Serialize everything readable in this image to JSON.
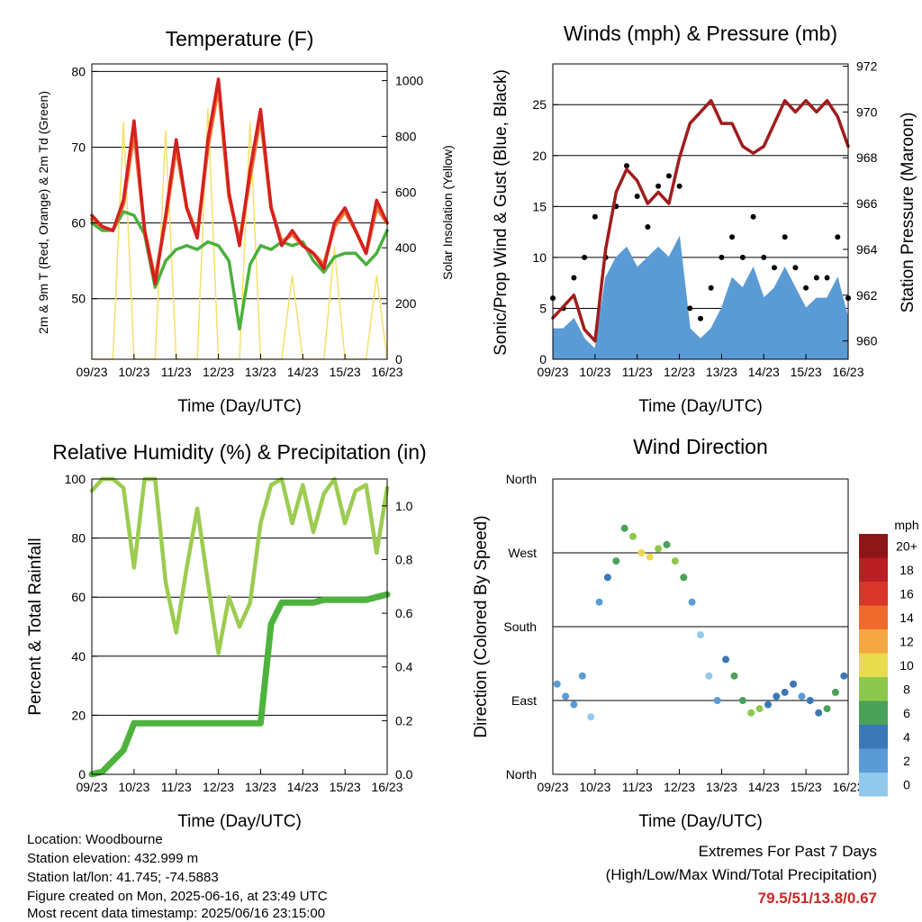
{
  "x_ticks": [
    "09/23",
    "10/23",
    "11/23",
    "12/23",
    "13/23",
    "14/23",
    "15/23",
    "16/23"
  ],
  "panels": {
    "temperature": {
      "title": "Temperature (F)",
      "xlabel": "Time (Day/UTC)",
      "ylabel_left": "2m & 9m T (Red, Orange) & 2m Td (Green)",
      "ylabel_right": "Solar Insolation (Yellow)",
      "yticks_left": [
        "50",
        "60",
        "70",
        "80"
      ],
      "yticks_right": [
        "0",
        "200",
        "400",
        "600",
        "800",
        "1000"
      ]
    },
    "winds": {
      "title": "Winds (mph) & Pressure (mb)",
      "xlabel": "Time (Day/UTC)",
      "ylabel_left": "Sonic/Prop Wind & Gust (Blue, Black)",
      "ylabel_right": "Station Pressure (Maroon)",
      "yticks_left": [
        "0",
        "5",
        "10",
        "15",
        "20",
        "25"
      ],
      "yticks_right": [
        "960",
        "962",
        "964",
        "966",
        "968",
        "970",
        "972"
      ]
    },
    "humidity": {
      "title": "Relative Humidity (%) & Precipitation (in)",
      "xlabel": "Time (Day/UTC)",
      "ylabel_left": "Percent & Total Rainfall",
      "yticks_left": [
        "0",
        "20",
        "40",
        "60",
        "80",
        "100"
      ],
      "yticks_right": [
        "0.0",
        "0.2",
        "0.4",
        "0.6",
        "0.8",
        "1.0"
      ]
    },
    "direction": {
      "title": "Wind Direction",
      "xlabel": "Time (Day/UTC)",
      "ylabel_left": "Direction (Colored By Speed)",
      "yticks_left": [
        "North",
        "East",
        "South",
        "West",
        "North"
      ],
      "legend_title": "mph",
      "legend_labels": [
        "0",
        "2",
        "4",
        "6",
        "8",
        "10",
        "12",
        "14",
        "16",
        "18",
        "20+"
      ]
    }
  },
  "colors": {
    "temp_2m": "#d42020",
    "temp_9m": "#f07830",
    "dewpoint": "#4caf3e",
    "insolation": "#f5e06a",
    "wind": "#5a9bd5",
    "gust": "#000000",
    "pressure": "#a01c1c",
    "rh": "#9ccc50",
    "precip": "#4db33d",
    "speed_scale": [
      "#cde9f7",
      "#91c9ec",
      "#5a9bd5",
      "#3a78b8",
      "#4aa15a",
      "#8cc84b",
      "#e8dc4c",
      "#f5a742",
      "#ef6a2c",
      "#d9352a",
      "#b81e22",
      "#8e1518"
    ]
  },
  "chart_data": [
    {
      "type": "line",
      "title": "Temperature (F)",
      "xlabel": "Time (Day/UTC)",
      "ylabel": "2m & 9m T (Red, Orange) & 2m Td (Green)",
      "ylabel_right": "Solar Insolation (Yellow)",
      "x": [
        9.0,
        9.25,
        9.5,
        9.75,
        10.0,
        10.25,
        10.5,
        10.75,
        11.0,
        11.25,
        11.5,
        11.75,
        12.0,
        12.25,
        12.5,
        12.75,
        13.0,
        13.25,
        13.5,
        13.75,
        14.0,
        14.25,
        14.5,
        14.75,
        15.0,
        15.25,
        15.5,
        15.75,
        16.0
      ],
      "ylim": [
        42,
        81
      ],
      "ylim_right": [
        0,
        1060
      ],
      "series": [
        {
          "name": "2m T",
          "values": [
            61,
            59.5,
            59,
            63,
            73.5,
            59,
            52,
            61,
            71,
            62,
            58,
            71,
            79,
            64,
            57,
            67,
            75,
            62,
            57,
            59,
            57,
            56,
            54,
            60,
            62,
            59,
            56,
            63,
            60
          ]
        },
        {
          "name": "9m T",
          "values": [
            60.5,
            59.5,
            59,
            62.5,
            72,
            59,
            52.5,
            60.5,
            70,
            62,
            58.5,
            70,
            78,
            63.5,
            57.5,
            66,
            74,
            62,
            57.5,
            58.5,
            57,
            56,
            54.5,
            59.5,
            61.5,
            59,
            56,
            62,
            60
          ]
        },
        {
          "name": "2m Td",
          "values": [
            60,
            59,
            59,
            61.5,
            61,
            58.5,
            51.5,
            55,
            56.5,
            57,
            56.5,
            57.5,
            57,
            55,
            46,
            54.5,
            57,
            56.5,
            57.5,
            57,
            57.5,
            55,
            53.5,
            55.5,
            56,
            56,
            54.5,
            56,
            59
          ]
        },
        {
          "name": "Solar Insolation",
          "axis": "right",
          "values": [
            0,
            0,
            0,
            850,
            0,
            0,
            0,
            820,
            0,
            0,
            0,
            900,
            0,
            0,
            0,
            850,
            0,
            0,
            0,
            300,
            0,
            0,
            0,
            400,
            0,
            0,
            0,
            300,
            0
          ]
        }
      ]
    },
    {
      "type": "line",
      "title": "Winds (mph) & Pressure (mb)",
      "xlabel": "Time (Day/UTC)",
      "ylabel": "Sonic/Prop Wind & Gust (Blue, Black)",
      "ylabel_right": "Station Pressure (Maroon)",
      "x": [
        9.0,
        9.25,
        9.5,
        9.75,
        10.0,
        10.25,
        10.5,
        10.75,
        11.0,
        11.25,
        11.5,
        11.75,
        12.0,
        12.25,
        12.5,
        12.75,
        13.0,
        13.25,
        13.5,
        13.75,
        14.0,
        14.25,
        14.5,
        14.75,
        15.0,
        15.25,
        15.5,
        15.75,
        16.0
      ],
      "ylim": [
        0,
        29
      ],
      "ylim_right": [
        959.2,
        972.1
      ],
      "series": [
        {
          "name": "Wind",
          "values": [
            3,
            3,
            4,
            2,
            1,
            8,
            10,
            11,
            9,
            10,
            11,
            10,
            12,
            3,
            2,
            3,
            5,
            8,
            7,
            9,
            6,
            7,
            9,
            7,
            5,
            6,
            6,
            8,
            4
          ]
        },
        {
          "name": "Gust",
          "values": [
            6,
            5,
            8,
            10,
            14,
            10,
            15,
            19,
            16,
            13,
            17,
            18,
            17,
            5,
            4,
            7,
            10,
            12,
            10,
            14,
            10,
            9,
            12,
            9,
            7,
            8,
            8,
            12,
            6
          ]
        },
        {
          "name": "Pressure",
          "axis": "right",
          "values": [
            961,
            961.5,
            962,
            960.5,
            960,
            964,
            966.5,
            967.5,
            967,
            966,
            966.5,
            966,
            968,
            969.5,
            970,
            970.5,
            969.5,
            969.5,
            968.5,
            968.2,
            968.5,
            969.5,
            970.5,
            970,
            970.5,
            970,
            970.5,
            969.8,
            968.5
          ]
        }
      ]
    },
    {
      "type": "line",
      "title": "Relative Humidity (%) & Precipitation (in)",
      "xlabel": "Time (Day/UTC)",
      "ylabel": "Percent & Total Rainfall",
      "x": [
        9.0,
        9.25,
        9.5,
        9.75,
        10.0,
        10.25,
        10.5,
        10.75,
        11.0,
        11.25,
        11.5,
        11.75,
        12.0,
        12.25,
        12.5,
        12.75,
        13.0,
        13.25,
        13.5,
        13.75,
        14.0,
        14.25,
        14.5,
        14.75,
        15.0,
        15.25,
        15.5,
        15.75,
        16.0
      ],
      "ylim": [
        0,
        100
      ],
      "ylim_right": [
        0,
        1.1
      ],
      "series": [
        {
          "name": "Relative Humidity",
          "values": [
            96,
            100,
            100,
            97,
            70,
            100,
            100,
            65,
            48,
            70,
            90,
            65,
            41,
            60,
            50,
            58,
            85,
            98,
            100,
            85,
            98,
            82,
            95,
            100,
            85,
            96,
            98,
            75,
            97
          ]
        },
        {
          "name": "Total Rainfall",
          "axis": "right",
          "values": [
            0,
            0.01,
            0.05,
            0.09,
            0.19,
            0.19,
            0.19,
            0.19,
            0.19,
            0.19,
            0.19,
            0.19,
            0.19,
            0.19,
            0.19,
            0.19,
            0.19,
            0.56,
            0.64,
            0.64,
            0.64,
            0.64,
            0.65,
            0.65,
            0.65,
            0.65,
            0.65,
            0.66,
            0.67
          ]
        }
      ]
    },
    {
      "type": "scatter",
      "title": "Wind Direction",
      "xlabel": "Time (Day/UTC)",
      "ylabel": "Direction (Colored By Speed)",
      "ylim": [
        0,
        360
      ],
      "x": [
        9.1,
        9.3,
        9.5,
        9.7,
        9.9,
        10.1,
        10.3,
        10.5,
        10.7,
        10.9,
        11.1,
        11.3,
        11.5,
        11.7,
        11.9,
        12.1,
        12.3,
        12.5,
        12.7,
        12.9,
        13.1,
        13.3,
        13.5,
        13.7,
        13.9,
        14.1,
        14.3,
        14.5,
        14.7,
        14.9,
        15.1,
        15.3,
        15.5,
        15.7,
        15.9
      ],
      "y": [
        110,
        95,
        85,
        120,
        70,
        210,
        240,
        260,
        300,
        290,
        270,
        265,
        275,
        280,
        260,
        240,
        210,
        170,
        120,
        90,
        140,
        120,
        90,
        75,
        80,
        85,
        95,
        100,
        110,
        95,
        90,
        75,
        80,
        100,
        120
      ],
      "speed": [
        2,
        3,
        3,
        2,
        1,
        3,
        5,
        6,
        7,
        8,
        11,
        10,
        8,
        7,
        9,
        6,
        3,
        1,
        1,
        2,
        5,
        6,
        7,
        9,
        8,
        5,
        4,
        5,
        4,
        3,
        4,
        5,
        7,
        6,
        5
      ]
    }
  ],
  "info": {
    "location": "Location: Woodbourne",
    "elevation": "Station elevation: 432.999 m",
    "latlon": "Station lat/lon: 41.745; -74.5883",
    "created": "Figure created on Mon, 2025-06-16, at 23:49 UTC",
    "recent": "Most recent data timestamp: 2025/06/16 23:15:00"
  },
  "extremes": {
    "heading": "Extremes For Past 7 Days",
    "subheading": "(High/Low/Max Wind/Total Precipitation)",
    "value": "79.5/51/13.8/0.67"
  }
}
